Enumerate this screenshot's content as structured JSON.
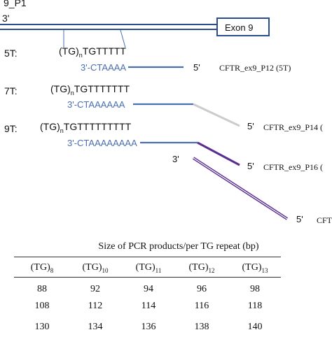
{
  "gene": {
    "top_left_label": "9_P1",
    "strand_end": "3'",
    "exon_label": "Exon 9"
  },
  "alleles": [
    {
      "name": "5T:",
      "sequence_tg": "(TG)",
      "sequence_sub": "n",
      "sequence_rest": "TGTTTTT",
      "primer_seq": "3'-CTAAAA",
      "primer_end": "5'",
      "primer_label": "CFTR_ex9_P12 (5T)",
      "line_color": "#4a6fb0"
    },
    {
      "name": "7T:",
      "sequence_tg": "(TG)",
      "sequence_sub": "n",
      "sequence_rest": "TGTTTTTTT",
      "primer_seq": "3'-CTAAAAAA",
      "primer_end": "5'",
      "primer_label": "CFTR_ex9_P14 (",
      "line_color": "#cccccc"
    },
    {
      "name": "9T:",
      "sequence_tg": "(TG)",
      "sequence_sub": "n",
      "sequence_rest": "TGTTTTTTTTT",
      "primer_seq": "3'-CTAAAAAAAA",
      "primer_end": "5'",
      "primer_label": "CFTR_ex9_P16 (",
      "line_color": "#5a2d91"
    }
  ],
  "reverse_primer": {
    "start": "3'",
    "end": "5'",
    "label": "CFT"
  },
  "table": {
    "caption": "Size of PCR products/per TG repeat (bp)",
    "headers": [
      {
        "base": "(TG)",
        "sub": "8"
      },
      {
        "base": "(TG)",
        "sub": "10"
      },
      {
        "base": "(TG)",
        "sub": "11"
      },
      {
        "base": "(TG)",
        "sub": "12"
      },
      {
        "base": "(TG)",
        "sub": "13"
      }
    ],
    "rows": [
      [
        "88",
        "92",
        "94",
        "96",
        "98"
      ],
      [
        "108",
        "112",
        "114",
        "116",
        "118"
      ],
      [
        "130",
        "134",
        "136",
        "138",
        "140"
      ]
    ]
  },
  "colors": {
    "strand_blue": "#2a4d8f",
    "primer_blue": "#4a6fb0",
    "purple": "#5a2d91",
    "gray": "#cccccc",
    "text": "#111111"
  }
}
